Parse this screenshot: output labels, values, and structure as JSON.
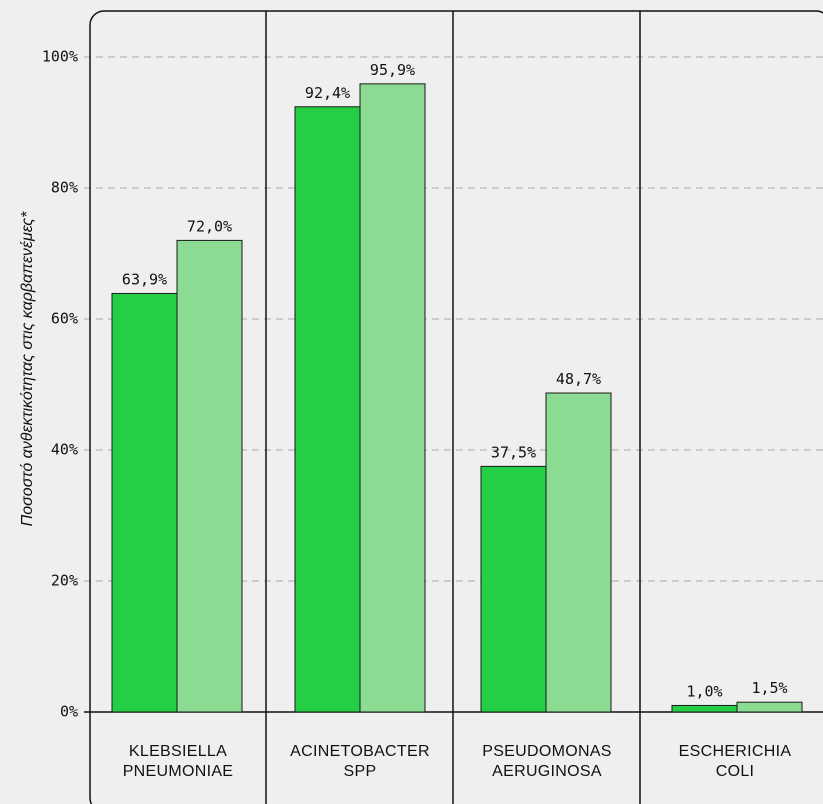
{
  "chart_data": {
    "type": "bar",
    "categories": [
      [
        "KLEBSIELLA",
        "PNEUMONIAE"
      ],
      [
        "ACINETOBACTER",
        "SPP"
      ],
      [
        "PSEUDOMONAS",
        "AERUGINOSA"
      ],
      [
        "ESCHERICHIA",
        "COLI"
      ]
    ],
    "series": [
      {
        "color": "#24cf45",
        "values": [
          63.9,
          92.4,
          37.5,
          1.0
        ],
        "labels": [
          "63,9%",
          "92,4%",
          "37,5%",
          "1,0%"
        ]
      },
      {
        "color": "#8cdb93",
        "values": [
          72.0,
          95.9,
          48.7,
          1.5
        ],
        "labels": [
          "72,0%",
          "95,9%",
          "48,7%",
          "1,5%"
        ]
      }
    ],
    "yticks": [
      0,
      20,
      40,
      60,
      80,
      100
    ],
    "ytick_labels": [
      "0%",
      "20%",
      "40%",
      "60%",
      "80%",
      "100%"
    ],
    "ylim": [
      0,
      100
    ],
    "ylabel": "Ποσοστό ανθεκτικότητας στις καρβαπενέμες*",
    "xlabel": "",
    "title": "",
    "grid": true,
    "legend": "none"
  }
}
